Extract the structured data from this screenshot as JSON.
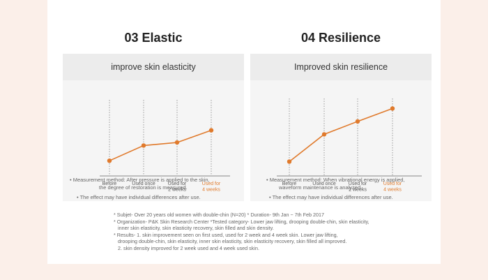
{
  "panels": [
    {
      "title": "03 Elastic",
      "subtitle": "improve skin elasticity",
      "notes": {
        "method_line1": "• Measurement  method: After pressure is applied to the  skin,",
        "method_line2": "the degree of restoration is measured.",
        "effect": "• The effect may have individual differences after use."
      }
    },
    {
      "title": "04 Resilience",
      "subtitle": "Improved skin resilience",
      "notes": {
        "method_line1": "• Measurement  method: When vibrational  energy is applied,",
        "method_line2": "waveform  maintenance is analyzed.",
        "effect": "• The effect may have individual differences after use."
      }
    }
  ],
  "chart_data": [
    {
      "type": "line",
      "title": "improve skin elasticity",
      "categories": [
        "Before",
        "Used once",
        "Used for 2 weeks",
        "Used for 4 weeks"
      ],
      "category_lines": [
        [
          "Before"
        ],
        [
          "Used once"
        ],
        [
          "Used for",
          "2 weeks"
        ],
        [
          "Used for",
          "4 weeks"
        ]
      ],
      "highlight_index": 3,
      "values": [
        1.0,
        2.0,
        2.2,
        3.0
      ],
      "ylim": [
        0,
        5
      ],
      "color": "#e07a2c",
      "grid": "vertical dotted"
    },
    {
      "type": "line",
      "title": "Improved skin resilience",
      "categories": [
        "Before",
        "Used once",
        "Used for 2 weeks",
        "Used for 4 weeks"
      ],
      "category_lines": [
        [
          "Before"
        ],
        [
          "Used once"
        ],
        [
          "Used for",
          "2 weeks"
        ],
        [
          "Used for",
          "4 weeks"
        ]
      ],
      "highlight_index": 3,
      "values": [
        1.0,
        2.9,
        3.8,
        4.7
      ],
      "ylim": [
        0,
        5.4
      ],
      "color": "#e07a2c",
      "grid": "vertical dotted"
    }
  ],
  "footnotes": [
    "* Subjet- Over 20 years old women with double-chin (N=20) * Duration- 9th Jan ~ 7th Feb 2017",
    "* Organization- P&K Skin Research Center *Tested category- Lower jaw lifting, drooping double-chin, skin elasticity,",
    "inner skin elasticity, skin elasticity recovery, skin filled and skin density.",
    "* Results- 1. skin improvement seen on first used, used for 2 week and 4 week skin. Lower jaw lifting,",
    "drooping double-chin, skin elasticity, inner skin elasticity, skin elasticity recovery, skin filled all improved.",
    "2. skin density improved for 2 week used and 4 week used skin."
  ]
}
